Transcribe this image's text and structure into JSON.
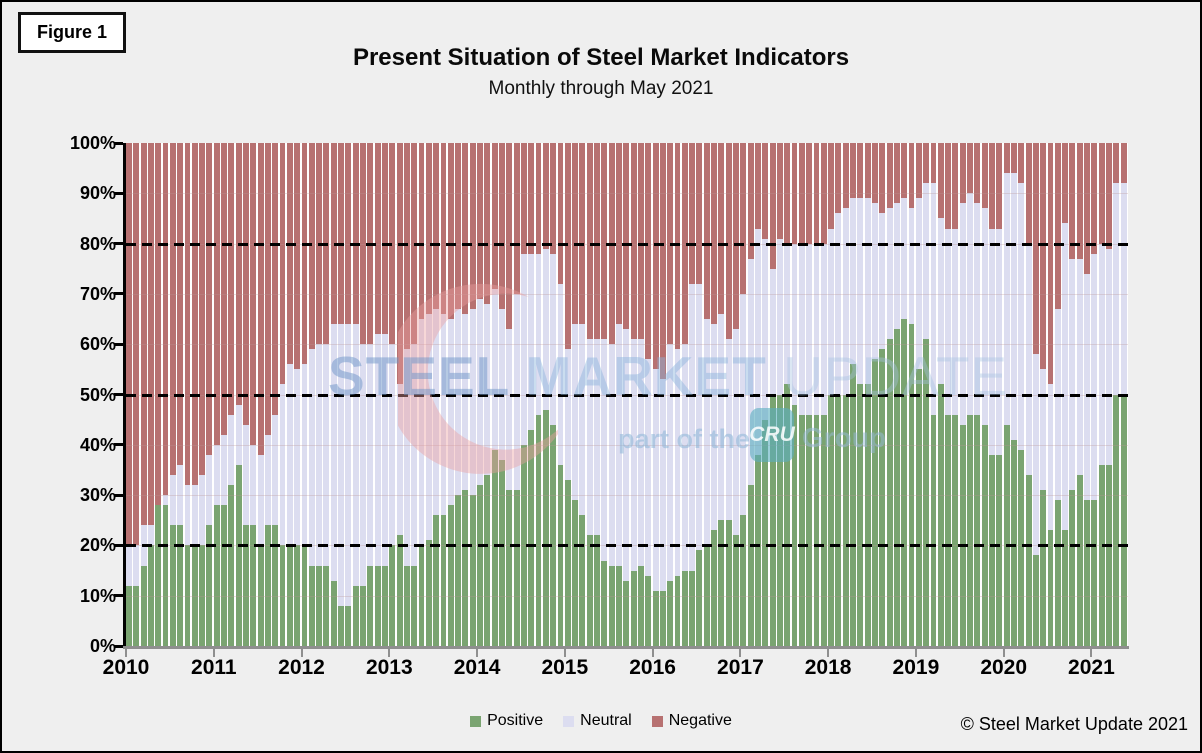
{
  "figure_label": "Figure 1",
  "title": "Present Situation of Steel Market Indicators",
  "subtitle": "Monthly through May 2021",
  "footer": {
    "copyright": "© Steel Market Update 2021"
  },
  "watermark": {
    "word1": "STEEL",
    "word2": "MARKET",
    "word3": "UPDATE",
    "tagline": "part of the",
    "cru_badge": "CRU",
    "group": "Group"
  },
  "colors": {
    "positive": "#7aa471",
    "neutral": "#dcddf0",
    "negative": "#b77171",
    "background": "#efefef",
    "plot_background": "#ffffff",
    "axis": "#000000",
    "x_axis_gray": "#8f8f8f"
  },
  "legend": [
    {
      "label": "Positive",
      "color": "#7aa471"
    },
    {
      "label": "Neutral",
      "color": "#dcddf0"
    },
    {
      "label": "Negative",
      "color": "#b77171"
    }
  ],
  "chart_data": {
    "type": "bar",
    "stacked": true,
    "x_monthly_start": "2010-01",
    "x_monthly_end": "2021-05",
    "n_months": 137,
    "x_tick_labels": [
      "2010",
      "2011",
      "2012",
      "2013",
      "2014",
      "2015",
      "2016",
      "2017",
      "2018",
      "2019",
      "2020",
      "2021"
    ],
    "y_tick_labels": [
      "0%",
      "10%",
      "20%",
      "30%",
      "40%",
      "50%",
      "60%",
      "70%",
      "80%",
      "90%",
      "100%"
    ],
    "ylim": [
      0,
      100
    ],
    "grid": "faint 10% gridlines; bold dashed lines at 20/50/80",
    "dashed_gridlines": [
      20,
      50,
      80
    ],
    "legend_position": "bottom-center",
    "series": [
      {
        "name": "Positive",
        "values": [
          12,
          12,
          16,
          20,
          28,
          28,
          24,
          24,
          20,
          20,
          20,
          24,
          28,
          28,
          32,
          36,
          24,
          24,
          20,
          24,
          24,
          20,
          20,
          20,
          20,
          16,
          16,
          16,
          13,
          8,
          8,
          12,
          12,
          16,
          16,
          16,
          20,
          22,
          16,
          16,
          20,
          21,
          26,
          26,
          28,
          30,
          31,
          30,
          32,
          34,
          39,
          37,
          31,
          31,
          40,
          43,
          46,
          47,
          44,
          36,
          33,
          29,
          26,
          22,
          22,
          17,
          16,
          16,
          13,
          15,
          16,
          14,
          11,
          11,
          13,
          14,
          15,
          15,
          19,
          20,
          23,
          25,
          25,
          22,
          26,
          32,
          38,
          45,
          50,
          50,
          52,
          48,
          46,
          46,
          46,
          46,
          50,
          50,
          50,
          56,
          52,
          52,
          57,
          59,
          61,
          63,
          65,
          64,
          55,
          61,
          46,
          52,
          46,
          46,
          44,
          46,
          46,
          44,
          38,
          38,
          44,
          41,
          39,
          34,
          18,
          31,
          23,
          29,
          23,
          31,
          34,
          29,
          29,
          36,
          36,
          50,
          50
        ]
      },
      {
        "name": "Neutral",
        "values": [
          8,
          8,
          8,
          4,
          0,
          2,
          10,
          12,
          12,
          12,
          14,
          14,
          12,
          14,
          14,
          12,
          20,
          16,
          18,
          18,
          22,
          32,
          36,
          35,
          36,
          43,
          44,
          44,
          51,
          56,
          56,
          52,
          48,
          44,
          46,
          46,
          40,
          30,
          43,
          44,
          45,
          45,
          41,
          40,
          37,
          37,
          35,
          37,
          37,
          34,
          32,
          30,
          32,
          39,
          38,
          35,
          32,
          32,
          34,
          36,
          26,
          35,
          38,
          39,
          39,
          44,
          44,
          48,
          50,
          46,
          45,
          43,
          44,
          42,
          47,
          45,
          45,
          57,
          53,
          45,
          41,
          41,
          36,
          41,
          44,
          45,
          45,
          36,
          25,
          31,
          28,
          32,
          34,
          34,
          34,
          34,
          33,
          36,
          37,
          33,
          37,
          37,
          31,
          27,
          26,
          25,
          24,
          23,
          34,
          31,
          46,
          33,
          37,
          37,
          44,
          44,
          42,
          43,
          45,
          45,
          50,
          53,
          53,
          46,
          40,
          24,
          29,
          38,
          61,
          46,
          43,
          45,
          49,
          44,
          43,
          42,
          42
        ]
      },
      {
        "name": "Negative",
        "values": [
          80,
          80,
          76,
          76,
          72,
          70,
          66,
          64,
          68,
          68,
          66,
          62,
          60,
          58,
          54,
          52,
          56,
          60,
          62,
          58,
          54,
          48,
          44,
          45,
          44,
          41,
          40,
          40,
          36,
          36,
          36,
          36,
          40,
          40,
          38,
          38,
          40,
          48,
          41,
          40,
          35,
          34,
          33,
          34,
          35,
          33,
          34,
          33,
          31,
          32,
          29,
          33,
          37,
          30,
          22,
          22,
          22,
          21,
          22,
          28,
          41,
          36,
          36,
          39,
          39,
          39,
          40,
          36,
          37,
          39,
          39,
          43,
          45,
          47,
          40,
          41,
          40,
          28,
          28,
          35,
          36,
          34,
          39,
          37,
          30,
          23,
          17,
          19,
          25,
          19,
          20,
          20,
          20,
          20,
          20,
          20,
          17,
          14,
          13,
          11,
          11,
          11,
          12,
          14,
          13,
          12,
          11,
          13,
          11,
          8,
          8,
          15,
          17,
          17,
          12,
          10,
          12,
          13,
          17,
          17,
          6,
          6,
          8,
          20,
          42,
          45,
          48,
          33,
          16,
          23,
          23,
          26,
          22,
          20,
          21,
          8,
          8
        ]
      }
    ]
  }
}
